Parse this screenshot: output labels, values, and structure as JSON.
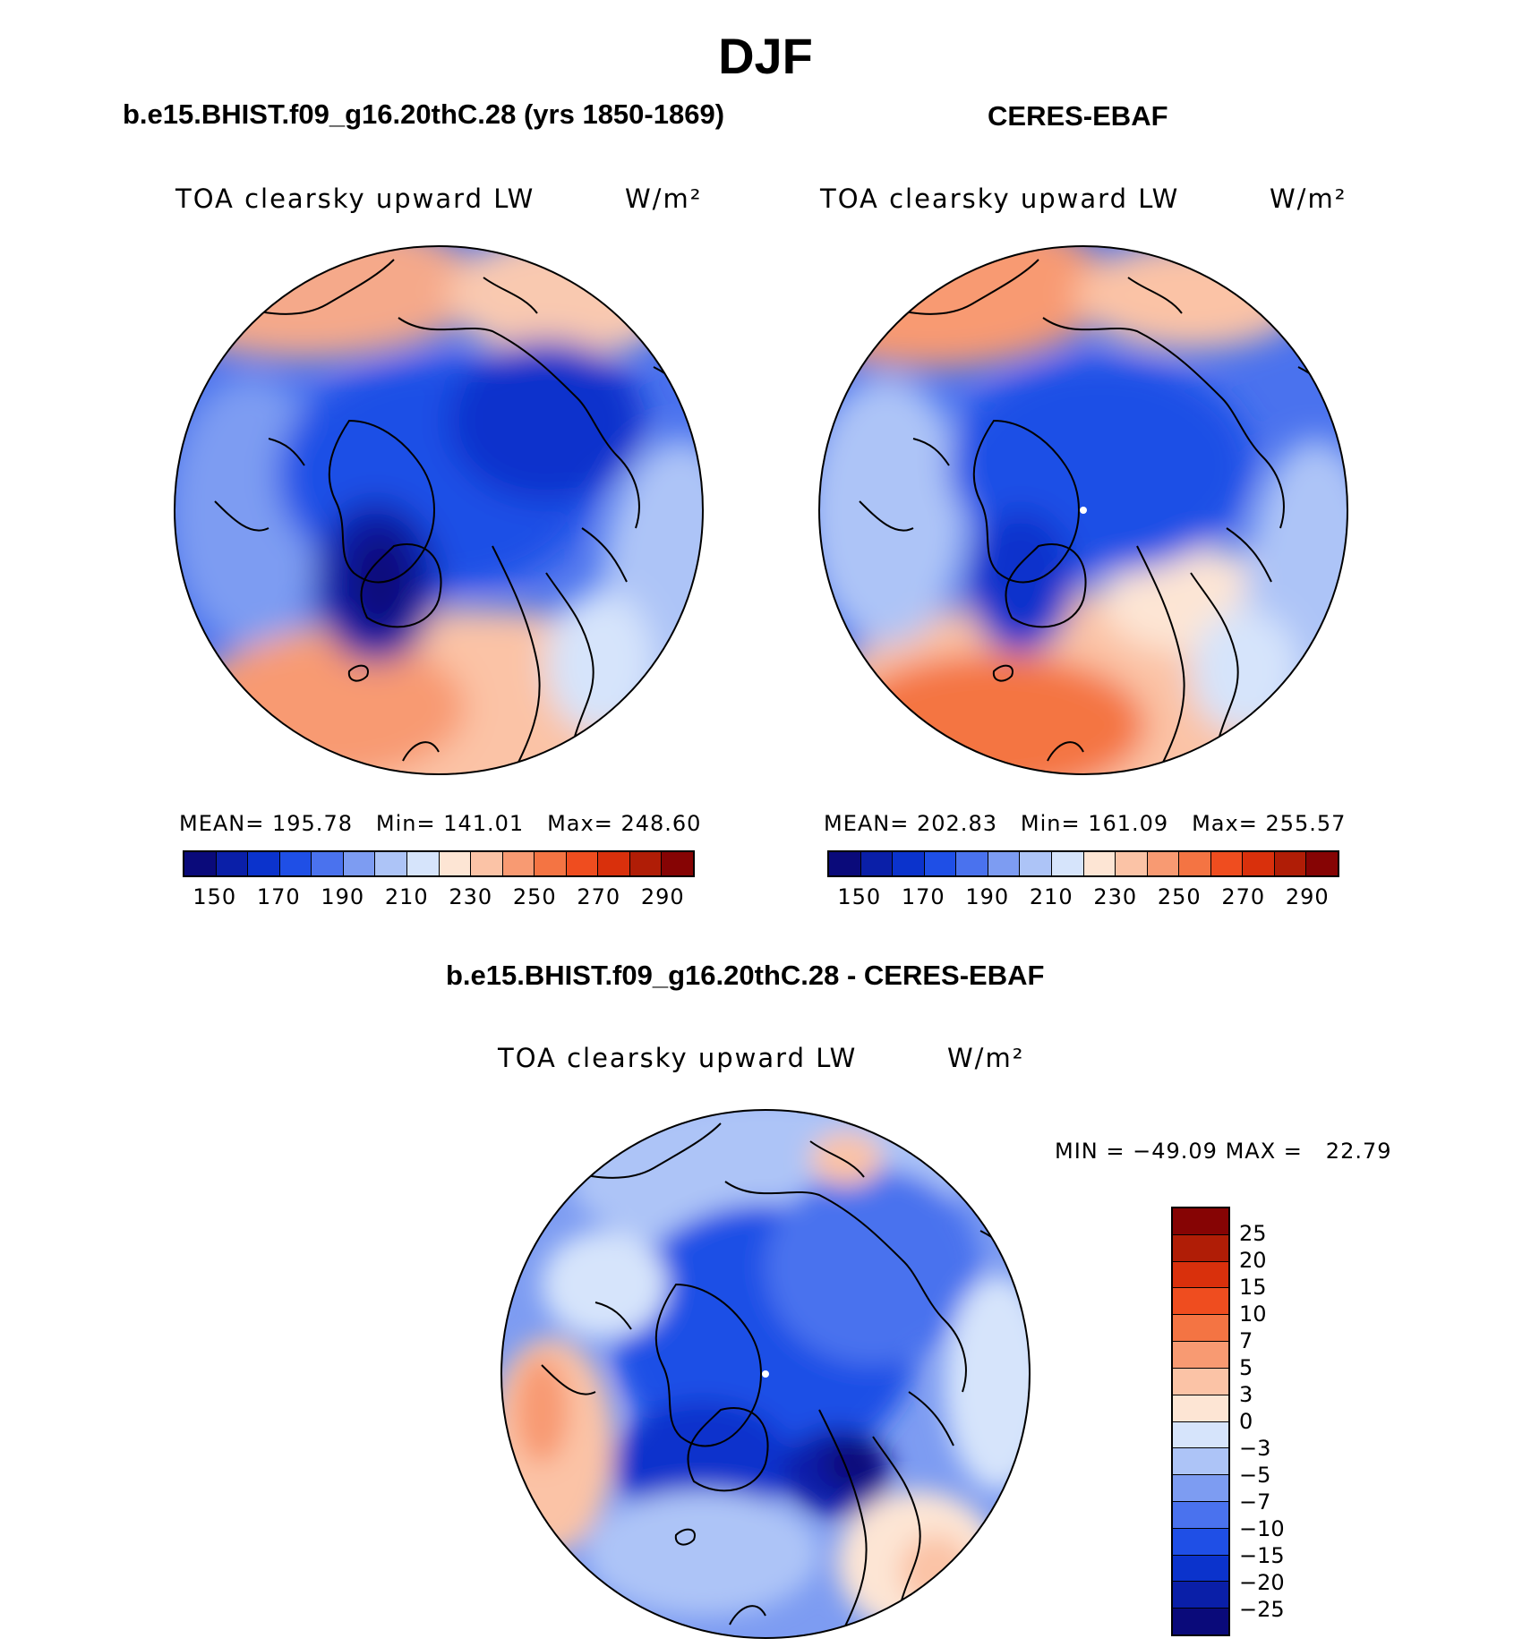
{
  "title": "DJF",
  "panels": {
    "model": {
      "header": "b.e15.BHIST.f09_g16.20thC.28 (yrs 1850-1869)",
      "variable": "TOA clearsky upward LW",
      "units": "W/m²",
      "mean_label": "MEAN=",
      "mean": "195.78",
      "min_label": "Min=",
      "min": "141.01",
      "max_label": "Max=",
      "max": "248.60"
    },
    "obs": {
      "header": "CERES-EBAF",
      "variable": "TOA clearsky upward LW",
      "units": "W/m²",
      "mean_label": "MEAN=",
      "mean": "202.83",
      "min_label": "Min=",
      "min": "161.09",
      "max_label": "Max=",
      "max": "255.57"
    },
    "diff": {
      "header": "b.e15.BHIST.f09_g16.20thC.28 - CERES-EBAF",
      "variable": "TOA clearsky upward LW",
      "units": "W/m²",
      "min_label": "MIN =",
      "min": "−49.09",
      "max_label": "MAX =",
      "max": "22.79"
    }
  },
  "colorbars": {
    "absolute": {
      "ticks": [
        "150",
        "170",
        "190",
        "210",
        "230",
        "250",
        "270",
        "290"
      ],
      "colors": [
        "#0a0a7a",
        "#0a1fa8",
        "#0b33cc",
        "#1f4fe6",
        "#4a72ee",
        "#7d9cf2",
        "#adc4f7",
        "#d6e4fb",
        "#fde5d4",
        "#fbc3a6",
        "#f89a72",
        "#f47443",
        "#ef4d1f",
        "#d9300c",
        "#b01d06",
        "#860404"
      ]
    },
    "difference": {
      "ticks": [
        "25",
        "20",
        "15",
        "10",
        "7",
        "5",
        "3",
        "0",
        "−3",
        "−5",
        "−7",
        "−10",
        "−15",
        "−20",
        "−25"
      ],
      "colors": [
        "#860404",
        "#b01d06",
        "#d9300c",
        "#ef4d1f",
        "#f47443",
        "#f89a72",
        "#fbc3a6",
        "#fde5d4",
        "#d6e4fb",
        "#adc4f7",
        "#7d9cf2",
        "#4a72ee",
        "#1f4fe6",
        "#0b33cc",
        "#0a1fa8",
        "#0a0a7a"
      ]
    }
  }
}
